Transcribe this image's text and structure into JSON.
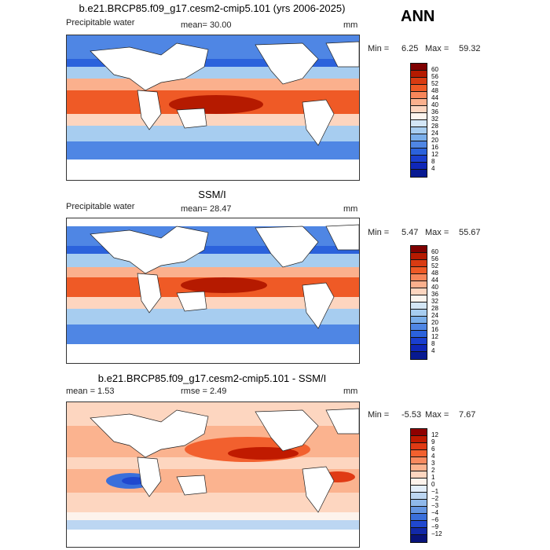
{
  "annual_label": "ANN",
  "panels": [
    {
      "title": "b.e21.BRCP85.f09_g17.cesm2-cmip5.101 (yrs 2006-2025)",
      "left_label": "Precipitable water",
      "center_label": "mean=  30.00",
      "units": "mm",
      "min_label": "Min =",
      "min_value": "6.25",
      "max_label": "Max =",
      "max_value": "59.32",
      "colorbar_levels": [
        "60",
        "56",
        "52",
        "48",
        "44",
        "40",
        "36",
        "32",
        "28",
        "24",
        "20",
        "16",
        "12",
        "8",
        "4"
      ],
      "colorbar_colors": [
        "#7f0000",
        "#b51a00",
        "#d93b12",
        "#ef5a26",
        "#f7865a",
        "#fbb08d",
        "#fdd5bf",
        "#fdf5ef",
        "#d3e6f6",
        "#a7cdf0",
        "#7aaeea",
        "#4f86e4",
        "#2b62dc",
        "#1a3fcf",
        "#0f27b8",
        "#081a92"
      ]
    },
    {
      "title": "SSM/I",
      "left_label": "Precipitable water",
      "center_label": "mean=  28.47",
      "units": "mm",
      "min_label": "Min =",
      "min_value": "5.47",
      "max_label": "Max =",
      "max_value": "55.67",
      "colorbar_levels": [
        "60",
        "56",
        "52",
        "48",
        "44",
        "40",
        "36",
        "32",
        "28",
        "24",
        "20",
        "16",
        "12",
        "8",
        "4"
      ],
      "colorbar_colors": [
        "#7f0000",
        "#b51a00",
        "#d93b12",
        "#ef5a26",
        "#f7865a",
        "#fbb08d",
        "#fdd5bf",
        "#fdf5ef",
        "#d3e6f6",
        "#a7cdf0",
        "#7aaeea",
        "#4f86e4",
        "#2b62dc",
        "#1a3fcf",
        "#0f27b8",
        "#081a92"
      ]
    },
    {
      "title": "b.e21.BRCP85.f09_g17.cesm2-cmip5.101 - SSM/I",
      "left_label": "mean =   1.53",
      "center_label": "rmse =   2.49",
      "units": "mm",
      "min_label": "Min =",
      "min_value": "-5.53",
      "max_label": "Max =",
      "max_value": "7.67",
      "colorbar_levels": [
        "12",
        "9",
        "6",
        "4",
        "3",
        "2",
        "1",
        "0",
        "−1",
        "−2",
        "−3",
        "−4",
        "−6",
        "−9",
        "−12"
      ],
      "colorbar_colors": [
        "#8f0000",
        "#c01a00",
        "#e03a14",
        "#f2602e",
        "#f78a5f",
        "#fbb38f",
        "#fdd6c0",
        "#fdf3ec",
        "#e3eefa",
        "#bcd6f2",
        "#8fb8ea",
        "#6495e2",
        "#3a6fdb",
        "#2048cf",
        "#1229a8",
        "#08137a"
      ]
    }
  ]
}
